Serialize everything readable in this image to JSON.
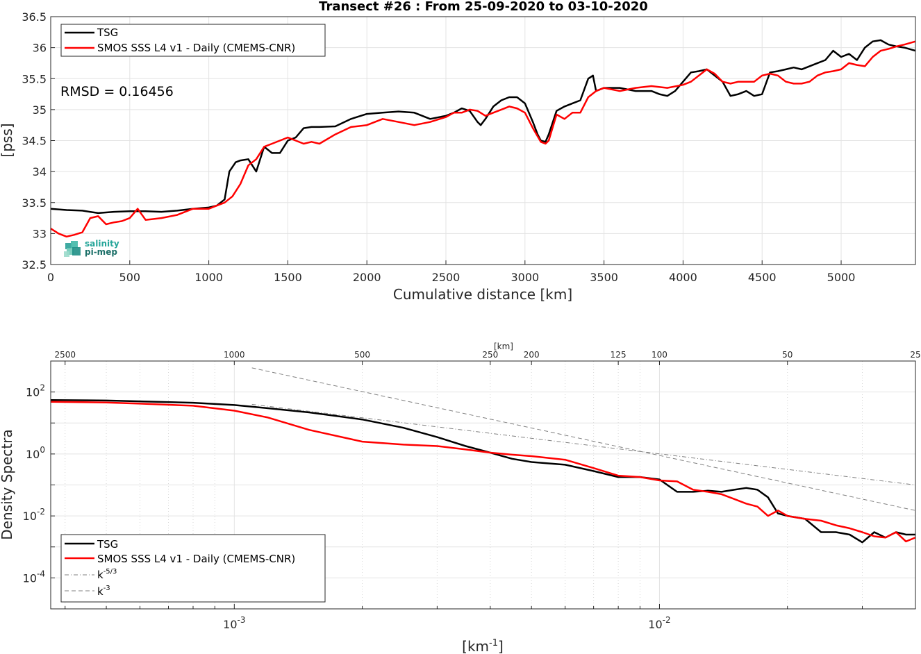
{
  "chart_data": [
    {
      "type": "line",
      "title": "Transect #26 : From 25-09-2020 to 03-10-2020",
      "xlabel": "Cumulative distance [km]",
      "ylabel": "[pss]",
      "xlim": [
        0,
        5470
      ],
      "ylim": [
        32.5,
        36.5
      ],
      "xticks": [
        0,
        500,
        1000,
        1500,
        2000,
        2500,
        3000,
        3500,
        4000,
        4500,
        5000
      ],
      "yticks": [
        32.5,
        33,
        33.5,
        34,
        34.5,
        35,
        35.5,
        36,
        36.5
      ],
      "grid": true,
      "legend_position": "top-left",
      "annotation": "RMSD = 0.16456",
      "logo": [
        "salinity",
        "pi-mep"
      ],
      "series": [
        {
          "name": "TSG",
          "color": "#000000",
          "x": [
            0,
            100,
            200,
            300,
            400,
            500,
            600,
            700,
            800,
            900,
            1000,
            1050,
            1100,
            1130,
            1170,
            1200,
            1250,
            1300,
            1350,
            1400,
            1450,
            1500,
            1550,
            1600,
            1650,
            1700,
            1800,
            1900,
            2000,
            2100,
            2200,
            2300,
            2400,
            2500,
            2550,
            2600,
            2650,
            2700,
            2720,
            2750,
            2800,
            2850,
            2900,
            2950,
            3000,
            3050,
            3080,
            3100,
            3130,
            3150,
            3200,
            3250,
            3300,
            3350,
            3400,
            3430,
            3450,
            3500,
            3600,
            3700,
            3800,
            3850,
            3900,
            3950,
            4000,
            4050,
            4100,
            4150,
            4200,
            4250,
            4300,
            4350,
            4400,
            4450,
            4500,
            4550,
            4600,
            4650,
            4700,
            4750,
            4800,
            4850,
            4900,
            4950,
            5000,
            5050,
            5100,
            5150,
            5200,
            5250,
            5300,
            5350,
            5400,
            5470
          ],
          "y": [
            33.4,
            33.38,
            33.37,
            33.33,
            33.35,
            33.36,
            33.36,
            33.35,
            33.37,
            33.4,
            33.42,
            33.45,
            33.55,
            34.0,
            34.15,
            34.18,
            34.2,
            34.0,
            34.4,
            34.3,
            34.3,
            34.5,
            34.55,
            34.7,
            34.72,
            34.72,
            34.73,
            34.85,
            34.93,
            34.95,
            34.97,
            34.95,
            34.85,
            34.9,
            34.95,
            35.02,
            34.98,
            34.8,
            34.75,
            34.85,
            35.05,
            35.15,
            35.2,
            35.2,
            35.1,
            34.8,
            34.6,
            34.5,
            34.48,
            34.6,
            34.98,
            35.05,
            35.1,
            35.15,
            35.5,
            35.55,
            35.3,
            35.35,
            35.35,
            35.3,
            35.3,
            35.25,
            35.22,
            35.3,
            35.45,
            35.6,
            35.62,
            35.65,
            35.55,
            35.45,
            35.22,
            35.25,
            35.3,
            35.22,
            35.25,
            35.6,
            35.62,
            35.65,
            35.68,
            35.65,
            35.7,
            35.75,
            35.8,
            35.95,
            35.85,
            35.9,
            35.8,
            36.0,
            36.1,
            36.12,
            36.05,
            36.02,
            36.0,
            35.95
          ]
        },
        {
          "name": "SMOS SSS L4 v1 - Daily (CMEMS-CNR)",
          "color": "#ff0000",
          "x": [
            0,
            50,
            100,
            150,
            200,
            250,
            300,
            350,
            400,
            450,
            500,
            550,
            600,
            700,
            800,
            900,
            1000,
            1050,
            1100,
            1150,
            1200,
            1250,
            1300,
            1350,
            1400,
            1450,
            1500,
            1550,
            1600,
            1650,
            1700,
            1800,
            1900,
            2000,
            2100,
            2200,
            2300,
            2400,
            2500,
            2550,
            2600,
            2650,
            2700,
            2750,
            2800,
            2850,
            2900,
            2950,
            3000,
            3050,
            3100,
            3130,
            3150,
            3200,
            3250,
            3300,
            3350,
            3400,
            3450,
            3500,
            3600,
            3700,
            3800,
            3900,
            4000,
            4050,
            4100,
            4150,
            4200,
            4250,
            4300,
            4350,
            4400,
            4450,
            4500,
            4550,
            4600,
            4650,
            4700,
            4750,
            4800,
            4850,
            4900,
            4950,
            5000,
            5050,
            5100,
            5150,
            5200,
            5250,
            5300,
            5350,
            5400,
            5470
          ],
          "y": [
            33.08,
            33.0,
            32.95,
            32.98,
            33.02,
            33.25,
            33.28,
            33.15,
            33.18,
            33.2,
            33.25,
            33.4,
            33.22,
            33.25,
            33.3,
            33.4,
            33.4,
            33.45,
            33.5,
            33.6,
            33.8,
            34.1,
            34.2,
            34.4,
            34.45,
            34.5,
            34.55,
            34.5,
            34.45,
            34.48,
            34.45,
            34.6,
            34.72,
            34.75,
            34.85,
            34.8,
            34.75,
            34.8,
            34.88,
            34.95,
            34.95,
            35.0,
            34.98,
            34.9,
            34.95,
            35.0,
            35.05,
            35.02,
            34.95,
            34.7,
            34.48,
            34.45,
            34.5,
            34.92,
            34.85,
            34.95,
            34.95,
            35.2,
            35.3,
            35.35,
            35.3,
            35.35,
            35.38,
            35.35,
            35.4,
            35.45,
            35.55,
            35.65,
            35.58,
            35.45,
            35.42,
            35.45,
            35.45,
            35.45,
            35.55,
            35.58,
            35.55,
            35.45,
            35.42,
            35.42,
            35.45,
            35.55,
            35.6,
            35.62,
            35.65,
            35.75,
            35.72,
            35.7,
            35.85,
            35.95,
            35.98,
            36.02,
            36.05,
            36.1
          ]
        }
      ]
    },
    {
      "type": "line",
      "title": "",
      "xlabel": "[km-1]",
      "ylabel": "Density Spectra",
      "x_scale": "log",
      "y_scale": "log",
      "xlim": [
        0.00037,
        0.04
      ],
      "ylim": [
        1e-05,
        1000
      ],
      "xticks_labels": [
        {
          "value": 0.001,
          "base": "10",
          "exp": "-3"
        },
        {
          "value": 0.01,
          "base": "10",
          "exp": "-2"
        }
      ],
      "yticks_labels": [
        {
          "value": 0.0001,
          "base": "10",
          "exp": "-4"
        },
        {
          "value": 0.01,
          "base": "10",
          "exp": "-2"
        },
        {
          "value": 1,
          "base": "10",
          "exp": "0"
        },
        {
          "value": 100,
          "base": "10",
          "exp": "2"
        }
      ],
      "top_axis_label": "[km]",
      "top_ticks": [
        2500,
        1000,
        500,
        250,
        200,
        125,
        100,
        50,
        25
      ],
      "grid": true,
      "legend_position": "bottom-left",
      "series": [
        {
          "name": "TSG",
          "color": "#000000",
          "x": [
            0.00037,
            0.0005,
            0.0006,
            0.0008,
            0.001,
            0.0012,
            0.0015,
            0.002,
            0.0025,
            0.003,
            0.0035,
            0.004,
            0.0045,
            0.005,
            0.006,
            0.007,
            0.008,
            0.009,
            0.01,
            0.011,
            0.012,
            0.013,
            0.014,
            0.015,
            0.016,
            0.017,
            0.018,
            0.019,
            0.02,
            0.022,
            0.024,
            0.026,
            0.028,
            0.03,
            0.032,
            0.034,
            0.036,
            0.038,
            0.04
          ],
          "y": [
            55,
            53,
            50,
            45,
            38,
            30,
            22,
            13,
            7,
            3.5,
            1.8,
            1.1,
            0.7,
            0.55,
            0.45,
            0.28,
            0.18,
            0.18,
            0.15,
            0.06,
            0.06,
            0.065,
            0.06,
            0.07,
            0.08,
            0.07,
            0.04,
            0.012,
            0.01,
            0.008,
            0.003,
            0.003,
            0.0025,
            0.0014,
            0.003,
            0.002,
            0.003,
            0.0025,
            0.0025
          ]
        },
        {
          "name": "SMOS SSS L4 v1 - Daily (CMEMS-CNR)",
          "color": "#ff0000",
          "x": [
            0.00037,
            0.0005,
            0.0006,
            0.0008,
            0.001,
            0.0012,
            0.0015,
            0.002,
            0.0025,
            0.003,
            0.0035,
            0.004,
            0.0045,
            0.005,
            0.006,
            0.007,
            0.008,
            0.009,
            0.01,
            0.011,
            0.012,
            0.013,
            0.014,
            0.015,
            0.016,
            0.017,
            0.018,
            0.019,
            0.02,
            0.022,
            0.024,
            0.026,
            0.028,
            0.03,
            0.032,
            0.034,
            0.036,
            0.038,
            0.04
          ],
          "y": [
            48,
            46,
            42,
            36,
            25,
            15,
            6,
            2.5,
            2.0,
            1.8,
            1.4,
            1.1,
            0.95,
            0.85,
            0.65,
            0.35,
            0.2,
            0.18,
            0.14,
            0.13,
            0.07,
            0.06,
            0.05,
            0.035,
            0.025,
            0.02,
            0.01,
            0.015,
            0.01,
            0.008,
            0.007,
            0.005,
            0.004,
            0.003,
            0.0022,
            0.002,
            0.003,
            0.0015,
            0.002
          ]
        },
        {
          "name": "k-5/3",
          "color": "#808080",
          "dash": "dash-dot",
          "x": [
            0.0011,
            0.04
          ],
          "y": [
            40,
            0.1
          ]
        },
        {
          "name": "k-3",
          "color": "#808080",
          "dash": "dashed",
          "x": [
            0.0011,
            0.04
          ],
          "y": [
            600,
            0.015
          ]
        }
      ]
    }
  ]
}
